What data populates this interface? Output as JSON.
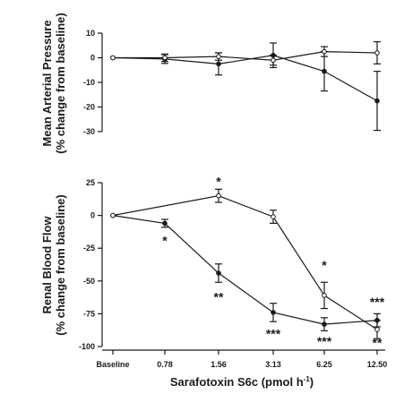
{
  "colors": {
    "axis": "#1a1a1a",
    "filled_marker": "#1a1a1a",
    "open_marker": "#ffffff"
  },
  "xaxis": {
    "label": "Sarafotoxin S6c (pmol h",
    "label_superscript": "-1",
    "label_close": ")",
    "categories": [
      "Baseline",
      "0.78",
      "1.56",
      "3.13",
      "6.25",
      "12.50"
    ]
  },
  "chart_data": [
    {
      "type": "line",
      "ylabel_line1": "Mean Arterial Pressure",
      "ylabel_line2": "(% change from baseline)",
      "ylim": [
        -30,
        10
      ],
      "yticks": [
        10,
        0,
        -10,
        -20,
        -30
      ],
      "categories": [
        "Baseline",
        "0.78",
        "1.56",
        "3.13",
        "6.25",
        "12.50"
      ],
      "grid": false,
      "series": [
        {
          "marker": "filled",
          "values": [
            0,
            -0.5,
            -2.5,
            1,
            -5.5,
            -17.5
          ],
          "errors": [
            0,
            1.8,
            4.5,
            5,
            8,
            12
          ]
        },
        {
          "marker": "open",
          "values": [
            0,
            0,
            0.5,
            -1,
            2.5,
            2
          ],
          "errors": [
            0,
            1.5,
            1.5,
            2,
            2,
            4.5
          ]
        }
      ],
      "annotations": []
    },
    {
      "type": "line",
      "ylabel_line1": "Renal Blood Flow",
      "ylabel_line2": "(% change from baseline)",
      "ylim": [
        -100,
        25
      ],
      "yticks": [
        25,
        0,
        -25,
        -50,
        -75,
        -100
      ],
      "categories": [
        "Baseline",
        "0.78",
        "1.56",
        "3.13",
        "6.25",
        "12.50"
      ],
      "grid": false,
      "series": [
        {
          "marker": "filled",
          "values": [
            0,
            -6,
            -44,
            -74,
            -83,
            -80
          ],
          "errors": [
            0,
            3,
            7,
            7,
            5,
            5
          ]
        },
        {
          "marker": "open",
          "values": [
            0,
            null,
            15,
            -1,
            -61,
            -87
          ],
          "errors": [
            0,
            0,
            5,
            5,
            10,
            7
          ]
        }
      ],
      "annotations": [
        {
          "category": "0.78",
          "text": "*",
          "value": -19
        },
        {
          "category": "1.56",
          "text": "*",
          "value": 26
        },
        {
          "category": "1.56",
          "text": "**",
          "value": -62
        },
        {
          "category": "3.13",
          "text": "***",
          "value": -90
        },
        {
          "category": "6.25",
          "text": "*",
          "value": -38
        },
        {
          "category": "6.25",
          "text": "***",
          "value": -96
        },
        {
          "category": "12.50",
          "text": "***",
          "value": -66
        },
        {
          "category": "12.50",
          "text": "**",
          "value": -97
        }
      ]
    }
  ]
}
